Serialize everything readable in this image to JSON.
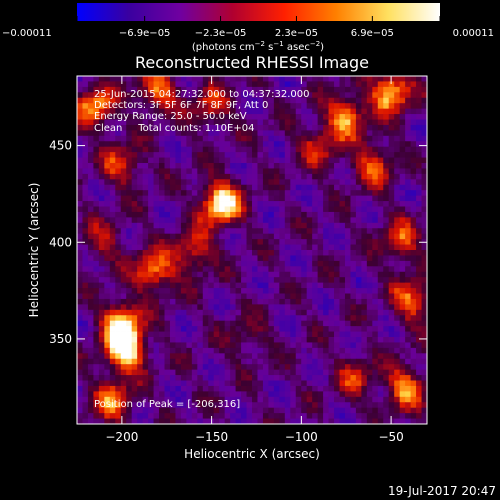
{
  "chart_data": {
    "type": "heatmap",
    "title": "Reconstructed RHESSI Image",
    "xlabel": "Heliocentric X (arcsec)",
    "ylabel": "Heliocentric Y (arcsec)",
    "xlim": [
      -225,
      -30
    ],
    "ylim": [
      306,
      486
    ],
    "x_ticks": [
      -200,
      -150,
      -100,
      -50
    ],
    "x_tick_labels": [
      "−200",
      "−150",
      "−100",
      "−50"
    ],
    "y_ticks": [
      350,
      400,
      450
    ],
    "y_tick_labels": [
      "350",
      "400",
      "450"
    ],
    "colorbar": {
      "range": [
        -0.00011,
        0.00011
      ],
      "ticks": [
        -0.00011,
        -6.9e-05,
        -2.3e-05,
        2.3e-05,
        6.9e-05,
        0.00011
      ],
      "tick_labels": [
        "−0.00011",
        "−6.9e−05",
        "−2.3e−05",
        "2.3e−05",
        "6.9e−05",
        "0.00011"
      ],
      "units_prefix": "(photons cm",
      "units_exp1": "−2",
      "units_mid": " s",
      "units_exp2": "−1",
      "units_mid2": " asec",
      "units_exp3": "−2",
      "units_suffix": ")",
      "colors": [
        "#0000ff",
        "#3a00a0",
        "#7000a0",
        "#b00030",
        "#ff2000",
        "#ff8000",
        "#ffe060",
        "#ffffff"
      ]
    },
    "annotations": [
      "25-Jun-2015 04:27:32.000 to 04:37:32.000",
      "Detectors: 3F 5F 6F 7F 8F 9F, Att 0",
      "Energy Range: 25.0 - 50.0 keV",
      "Clean     Total counts: 1.10E+04"
    ],
    "peak_label": "Position of Peak = [-206,316]",
    "sources": [
      {
        "x": -145,
        "y": 420,
        "amp": 1.0
      },
      {
        "x": -198,
        "y": 344,
        "amp": 0.95
      },
      {
        "x": -200,
        "y": 358,
        "amp": 0.85
      },
      {
        "x": -182,
        "y": 385,
        "amp": 0.7
      },
      {
        "x": -160,
        "y": 395,
        "amp": 0.55
      },
      {
        "x": -205,
        "y": 318,
        "amp": 0.6
      },
      {
        "x": -215,
        "y": 470,
        "amp": 0.7
      },
      {
        "x": -200,
        "y": 440,
        "amp": 0.5
      },
      {
        "x": -180,
        "y": 478,
        "amp": 0.6
      },
      {
        "x": -150,
        "y": 470,
        "amp": 0.45
      },
      {
        "x": -75,
        "y": 465,
        "amp": 0.7
      },
      {
        "x": -50,
        "y": 478,
        "amp": 0.85
      },
      {
        "x": -60,
        "y": 440,
        "amp": 0.55
      },
      {
        "x": -90,
        "y": 450,
        "amp": 0.45
      },
      {
        "x": -45,
        "y": 400,
        "amp": 0.55
      },
      {
        "x": -38,
        "y": 370,
        "amp": 0.6
      },
      {
        "x": -42,
        "y": 325,
        "amp": 0.65
      },
      {
        "x": -70,
        "y": 330,
        "amp": 0.4
      },
      {
        "x": -210,
        "y": 400,
        "amp": 0.35
      },
      {
        "x": -130,
        "y": 350,
        "amp": 0.25
      }
    ]
  },
  "footer": {
    "date": "19-Jul-2017 20:47"
  }
}
